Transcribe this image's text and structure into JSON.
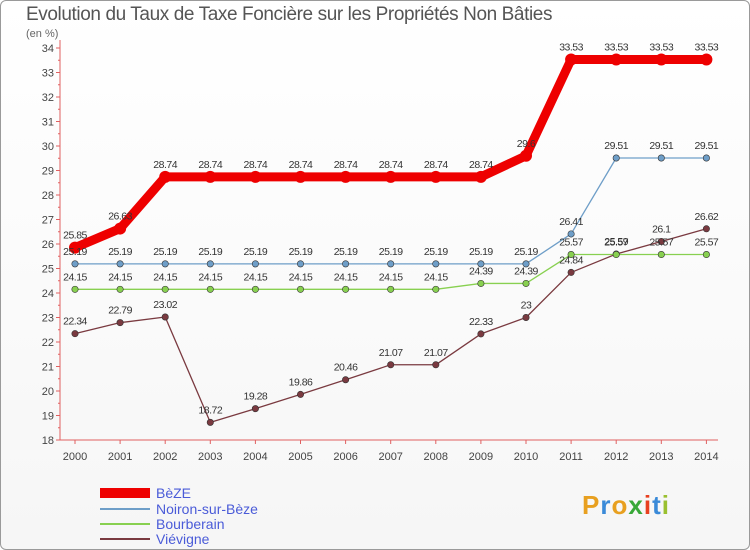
{
  "title": "Evolution du Taux de Taxe Foncière sur les Propriétés Non Bâties",
  "subtitle": "(en %)",
  "logo": "Proxiti",
  "logo_colors": [
    "#e8a020",
    "#3a8ad8",
    "#e8a020",
    "#38a838",
    "#e84020",
    "#3a8ad8",
    "#9ac030"
  ],
  "chart_data": {
    "type": "line",
    "title": "Evolution du Taux de Taxe Foncière sur les Propriétés Non Bâties",
    "ylabel": "(en %)",
    "xlabel": "",
    "ylim": [
      18,
      34
    ],
    "yticks": [
      18,
      19,
      20,
      21,
      22,
      23,
      24,
      25,
      26,
      27,
      28,
      29,
      30,
      31,
      32,
      33,
      34
    ],
    "grid": false,
    "legend_position": "bottom-left",
    "categories": [
      "2000",
      "2001",
      "2002",
      "2003",
      "2004",
      "2005",
      "2006",
      "2007",
      "2008",
      "2009",
      "2010",
      "2011",
      "2012",
      "2013",
      "2014"
    ],
    "series": [
      {
        "name": "BèZE",
        "color": "#ee0000",
        "emphasis": true,
        "values": [
          25.85,
          26.63,
          28.74,
          28.74,
          28.74,
          28.74,
          28.74,
          28.74,
          28.74,
          28.74,
          29.6,
          33.53,
          33.53,
          33.53,
          33.53
        ],
        "labels": [
          "25.85",
          "26.63",
          "28.74",
          "28.74",
          "28.74",
          "28.74",
          "28.74",
          "28.74",
          "28.74",
          "28.74",
          "29.6",
          "33.53",
          "33.53",
          "33.53",
          "33.53"
        ]
      },
      {
        "name": "Noiron-sur-Bèze",
        "color": "#6e9ec8",
        "values": [
          25.19,
          25.19,
          25.19,
          25.19,
          25.19,
          25.19,
          25.19,
          25.19,
          25.19,
          25.19,
          25.19,
          26.41,
          29.51,
          29.51,
          29.51
        ],
        "labels": [
          "25.19",
          "25.19",
          "25.19",
          "25.19",
          "25.19",
          "25.19",
          "25.19",
          "25.19",
          "25.19",
          "25.19",
          "25.19",
          "26.41",
          "29.51",
          "29.51",
          "29.51"
        ]
      },
      {
        "name": "Bourberain",
        "color": "#88d050",
        "values": [
          24.15,
          24.15,
          24.15,
          24.15,
          24.15,
          24.15,
          24.15,
          24.15,
          24.15,
          24.39,
          24.39,
          25.57,
          25.57,
          25.57,
          25.57
        ],
        "labels": [
          "24.15",
          "24.15",
          "24.15",
          "24.15",
          "24.15",
          "24.15",
          "24.15",
          "24.15",
          "24.15",
          "24.39",
          "24.39",
          "25.57",
          "25.57",
          "25.57",
          "25.57"
        ]
      },
      {
        "name": "Viévigne",
        "color": "#7a3a40",
        "values": [
          22.34,
          22.79,
          23.02,
          18.72,
          19.28,
          19.86,
          20.46,
          21.07,
          21.07,
          22.33,
          23.0,
          24.84,
          25.59,
          26.1,
          26.62
        ],
        "labels": [
          "22.34",
          "22.79",
          "23.02",
          "18.72",
          "19.28",
          "19.86",
          "20.46",
          "21.07",
          "21.07",
          "22.33",
          "23",
          "24.84",
          "25.59",
          "26.1",
          "26.62"
        ]
      }
    ]
  }
}
